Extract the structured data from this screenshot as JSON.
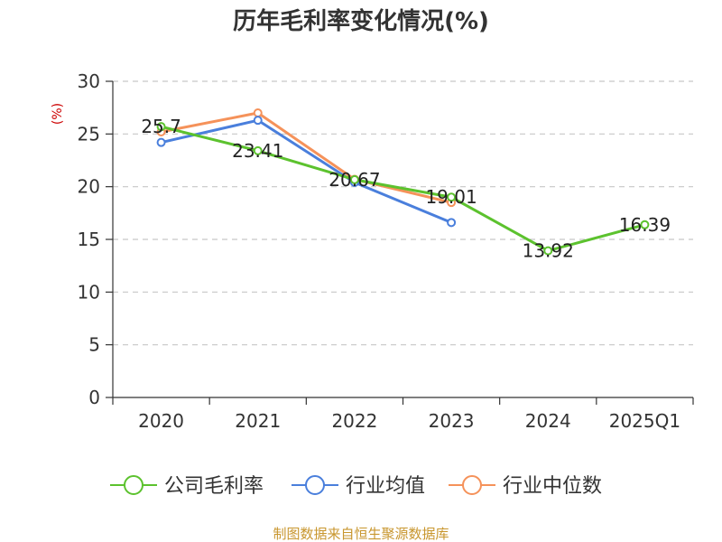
{
  "chart_data": {
    "type": "line",
    "title": "历年毛利率变化情况(%)",
    "xlabel": "",
    "ylabel": "(%)",
    "categories": [
      "2020",
      "2021",
      "2022",
      "2023",
      "2024",
      "2025Q1"
    ],
    "ylim": [
      0,
      30
    ],
    "yticks": [
      0,
      5,
      10,
      15,
      20,
      25,
      30
    ],
    "grid": "horizontal-dashed",
    "legend_position": "bottom",
    "series": [
      {
        "name": "公司毛利率",
        "color": "#5cc22e",
        "values": [
          25.7,
          23.41,
          20.67,
          19.01,
          13.92,
          16.39
        ],
        "labels": [
          "25.7",
          "23.41",
          "20.67",
          "19.01",
          "13.92",
          "16.39"
        ]
      },
      {
        "name": "行业均值",
        "color": "#4a7fdc",
        "values": [
          24.2,
          26.3,
          20.4,
          16.6,
          null,
          null
        ]
      },
      {
        "name": "行业中位数",
        "color": "#f5925a",
        "values": [
          25.2,
          27.0,
          20.7,
          18.5,
          null,
          null
        ]
      }
    ]
  },
  "footer": {
    "source": "制图数据来自恒生聚源数据库"
  }
}
